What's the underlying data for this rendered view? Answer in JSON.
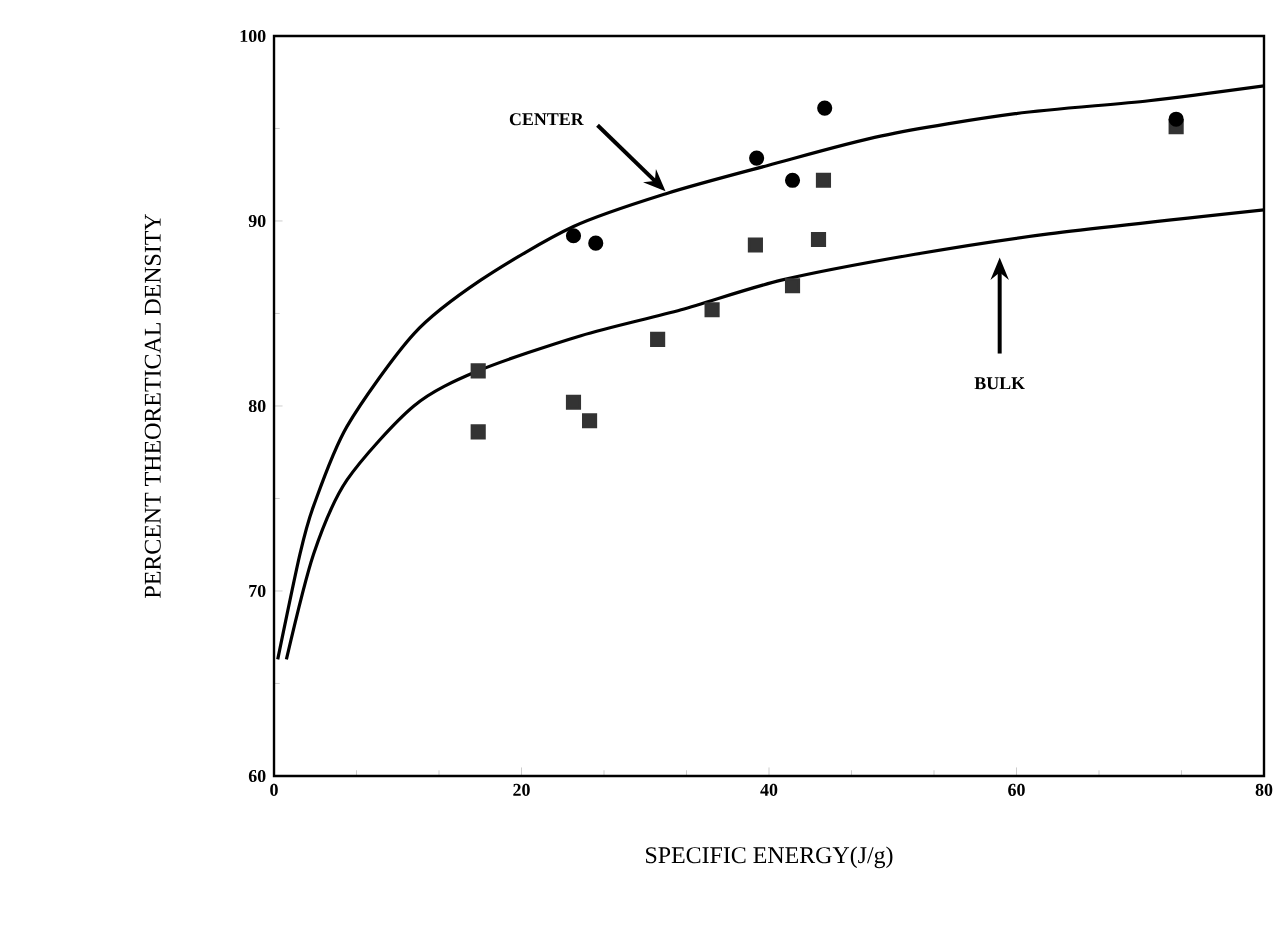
{
  "chart_data": {
    "type": "scatter",
    "xlabel": "SPECIFIC ENERGY(J/g)",
    "ylabel": "PERCENT THEORETICAL DENSITY",
    "xlim": [
      0,
      80
    ],
    "ylim": [
      60,
      100
    ],
    "xticks": [
      0,
      20,
      40,
      60,
      80
    ],
    "yticks": [
      60,
      70,
      80,
      90,
      100
    ],
    "grid": false,
    "series": [
      {
        "type": "line",
        "color": "#000000",
        "marker": "none",
        "line_style": "solid",
        "x": [
          0.3,
          2.1,
          3.2,
          5.9,
          11.3,
          16.7,
          24.2,
          31.8,
          39.9,
          49.1,
          59.9,
          70.7,
          80
        ],
        "values": [
          66.3,
          72.0,
          74.6,
          78.9,
          83.9,
          86.8,
          89.7,
          91.5,
          93.0,
          94.6,
          95.8,
          96.5,
          97.3
        ]
      },
      {
        "type": "line",
        "color": "#000000",
        "marker": "none",
        "line_style": "solid",
        "x": [
          1.0,
          3.2,
          5.9,
          11.3,
          16.5,
          24.8,
          32.9,
          41.0,
          51.8,
          62.6,
          80
        ],
        "values": [
          66.3,
          72.0,
          76.0,
          80.0,
          81.9,
          83.8,
          85.2,
          86.8,
          88.2,
          89.3,
          90.6
        ]
      },
      {
        "color": "#000000",
        "marker": "circle",
        "x": [
          24.2,
          26.0,
          39.0,
          41.9,
          44.5,
          72.9
        ],
        "values": [
          89.2,
          88.8,
          93.4,
          92.2,
          96.1,
          95.5
        ]
      },
      {
        "color": "#333333",
        "marker": "square",
        "x": [
          16.5,
          16.5,
          24.2,
          25.5,
          31.0,
          35.4,
          38.9,
          41.9,
          44.0,
          44.4,
          72.9
        ],
        "values": [
          81.9,
          78.6,
          80.2,
          79.2,
          83.6,
          85.2,
          88.7,
          86.5,
          89.0,
          92.2,
          95.1
        ]
      }
    ],
    "annotations": [
      {
        "text": "CENTER",
        "x": 31.8,
        "y": 91.5
      },
      "BULK"
    ]
  }
}
